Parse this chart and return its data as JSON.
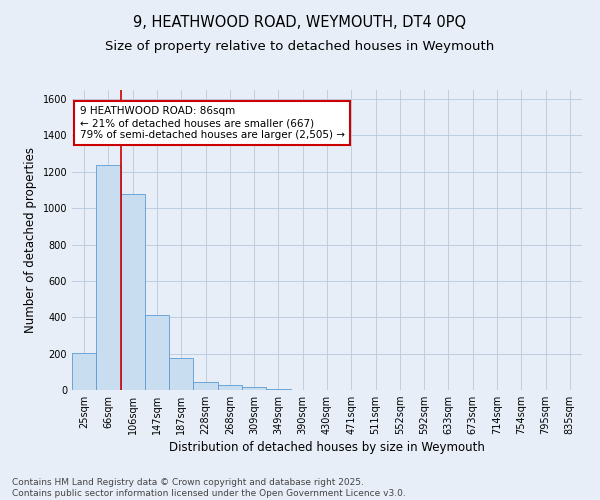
{
  "title_line1": "9, HEATHWOOD ROAD, WEYMOUTH, DT4 0PQ",
  "title_line2": "Size of property relative to detached houses in Weymouth",
  "xlabel": "Distribution of detached houses by size in Weymouth",
  "ylabel": "Number of detached properties",
  "categories": [
    "25sqm",
    "66sqm",
    "106sqm",
    "147sqm",
    "187sqm",
    "228sqm",
    "268sqm",
    "309sqm",
    "349sqm",
    "390sqm",
    "430sqm",
    "471sqm",
    "511sqm",
    "552sqm",
    "592sqm",
    "633sqm",
    "673sqm",
    "714sqm",
    "754sqm",
    "795sqm",
    "835sqm"
  ],
  "values": [
    205,
    1235,
    1080,
    415,
    178,
    45,
    27,
    18,
    8,
    0,
    0,
    0,
    0,
    0,
    0,
    0,
    0,
    0,
    0,
    0,
    0
  ],
  "bar_color": "#c8ddf0",
  "bar_edge_color": "#5b9bd5",
  "background_color": "#e8eef8",
  "red_line_x": 1.5,
  "annotation_title": "9 HEATHWOOD ROAD: 86sqm",
  "annotation_line2": "← 21% of detached houses are smaller (667)",
  "annotation_line3": "79% of semi-detached houses are larger (2,505) →",
  "annotation_box_facecolor": "#ffffff",
  "annotation_box_edge": "#cc0000",
  "red_line_color": "#cc0000",
  "footer_line1": "Contains HM Land Registry data © Crown copyright and database right 2025.",
  "footer_line2": "Contains public sector information licensed under the Open Government Licence v3.0.",
  "ylim": [
    0,
    1650
  ],
  "yticks": [
    0,
    200,
    400,
    600,
    800,
    1000,
    1200,
    1400,
    1600
  ],
  "grid_color": "#b8c8dc",
  "title_fontsize": 10.5,
  "subtitle_fontsize": 9.5,
  "tick_fontsize": 7,
  "label_fontsize": 8.5,
  "footer_fontsize": 6.5,
  "annotation_fontsize": 7.5
}
